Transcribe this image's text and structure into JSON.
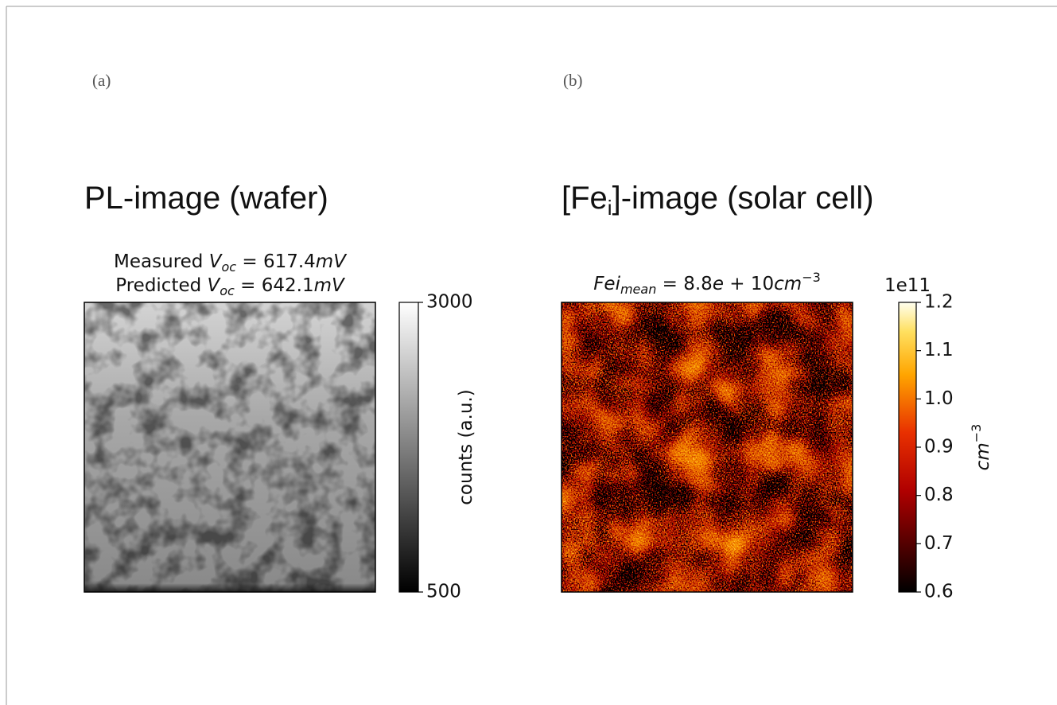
{
  "chart_data": [
    {
      "type": "image",
      "panel_label": "(a)",
      "heading": [
        "PL-image (wafer)"
      ],
      "title_lines": [
        [
          "Measured ",
          "V",
          "oc",
          " = 617.4",
          "mV"
        ],
        [
          "Predicted ",
          "V",
          "oc",
          " = 642.1",
          "mV"
        ]
      ],
      "colormap": "gray",
      "colorbar": {
        "label": "counts (a.u.)",
        "lim": [
          500,
          3000
        ],
        "ticks": [
          500,
          3000
        ]
      }
    },
    {
      "type": "image",
      "panel_label": "(b)",
      "heading": [
        "[Fe",
        "i",
        "]-image (solar cell)"
      ],
      "title_lines": [
        [
          "Fei",
          "mean",
          " = 8.8",
          "e",
          " + 10",
          "cm",
          "−3"
        ]
      ],
      "colormap": "hot",
      "colorbar": {
        "label": [
          "cm",
          "−3"
        ],
        "offset": "1e11",
        "lim": [
          0.6,
          1.2
        ],
        "ticks": [
          0.6,
          0.7,
          0.8,
          0.9,
          {
            "value": 1.0,
            "label": "1.0"
          },
          1.1,
          1.2
        ]
      }
    }
  ]
}
